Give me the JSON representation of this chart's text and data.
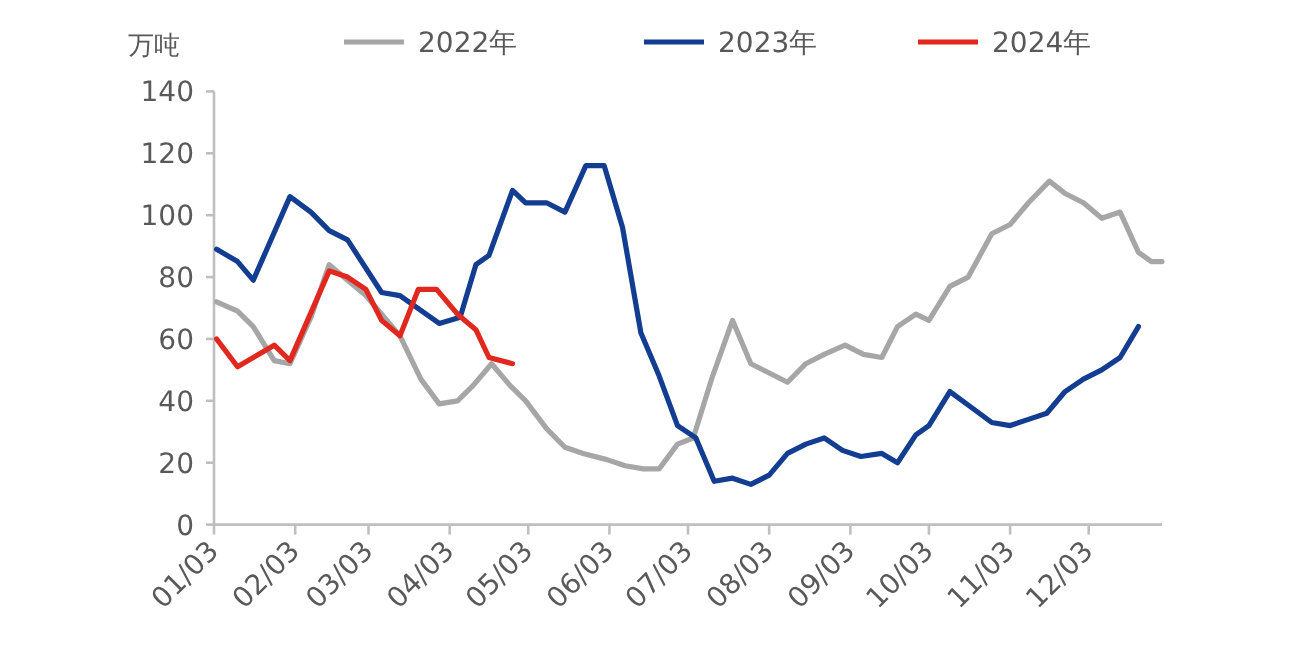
{
  "chart_data": {
    "type": "line",
    "ylabel": "万吨",
    "legend": "top",
    "grid": false,
    "marker": "none",
    "line_style": "solid",
    "xlim": [
      "--01-03",
      "--12-31"
    ],
    "xticks": [
      {
        "value": "--01-03",
        "label": "01/03"
      },
      {
        "value": "--02-03",
        "label": "02/03"
      },
      {
        "value": "--03-03",
        "label": "03/03"
      },
      {
        "value": "--04-03",
        "label": "04/03"
      },
      {
        "value": "--05-03",
        "label": "05/03"
      },
      {
        "value": "--06-03",
        "label": "06/03"
      },
      {
        "value": "--07-03",
        "label": "07/03"
      },
      {
        "value": "--08-03",
        "label": "08/03"
      },
      {
        "value": "--09-03",
        "label": "09/03"
      },
      {
        "value": "--10-03",
        "label": "10/03"
      },
      {
        "value": "--11-03",
        "label": "11/03"
      },
      {
        "value": "--12-03",
        "label": "12/03"
      }
    ],
    "ylim": [
      0,
      140
    ],
    "yticks": [
      0,
      20,
      40,
      60,
      80,
      100,
      120,
      140
    ],
    "series": [
      {
        "name": "2022年",
        "color": "#a6a6a6",
        "x": [
          "--01-04",
          "--01-12",
          "--01-18",
          "--01-26",
          "--02-01",
          "--02-09",
          "--02-16",
          "--02-23",
          "--03-02",
          "--03-09",
          "--03-15",
          "--03-23",
          "--03-30",
          "--04-06",
          "--04-12",
          "--04-19",
          "--04-26",
          "--05-02",
          "--05-10",
          "--05-17",
          "--05-24",
          "--06-02",
          "--06-09",
          "--06-16",
          "--06-22",
          "--06-29",
          "--07-05",
          "--07-12",
          "--07-20",
          "--07-27",
          "--08-03",
          "--08-10",
          "--08-17",
          "--08-24",
          "--09-01",
          "--09-08",
          "--09-15",
          "--09-21",
          "--09-28",
          "--10-03",
          "--10-11",
          "--10-18",
          "--10-27",
          "--11-03",
          "--11-10",
          "--11-18",
          "--11-24",
          "--12-01",
          "--12-08",
          "--12-15",
          "--12-22",
          "--12-27",
          "--12-31"
        ],
        "values": [
          72,
          69,
          64,
          53,
          52,
          67,
          84,
          79,
          74,
          67,
          61,
          47,
          39,
          40,
          45,
          52,
          45,
          40,
          31,
          25,
          23,
          21,
          19,
          18,
          18,
          26,
          28,
          47,
          66,
          52,
          49,
          46,
          52,
          55,
          58,
          55,
          54,
          64,
          68,
          66,
          77,
          80,
          94,
          97,
          104,
          111,
          107,
          104,
          99,
          101,
          88,
          85,
          85
        ]
      },
      {
        "name": "2023年",
        "color": "#133d91",
        "x": [
          "--01-04",
          "--01-12",
          "--01-18",
          "--02-01",
          "--02-09",
          "--02-16",
          "--02-23",
          "--03-08",
          "--03-15",
          "--03-30",
          "--04-07",
          "--04-13",
          "--04-18",
          "--04-27",
          "--05-02",
          "--05-10",
          "--05-17",
          "--05-25",
          "--06-01",
          "--06-08",
          "--06-15",
          "--06-22",
          "--06-29",
          "--07-06",
          "--07-13",
          "--07-20",
          "--07-27",
          "--08-03",
          "--08-10",
          "--08-17",
          "--08-24",
          "--08-31",
          "--09-07",
          "--09-15",
          "--09-21",
          "--09-28",
          "--10-03",
          "--10-11",
          "--10-19",
          "--10-27",
          "--11-03",
          "--11-10",
          "--11-17",
          "--11-24",
          "--12-01",
          "--12-08",
          "--12-15",
          "--12-22"
        ],
        "values": [
          89,
          85,
          79,
          106,
          101,
          95,
          92,
          75,
          74,
          65,
          67,
          84,
          87,
          108,
          104,
          104,
          101,
          116,
          116,
          96,
          62,
          48,
          32,
          28,
          14,
          15,
          13,
          16,
          23,
          26,
          28,
          24,
          22,
          23,
          20,
          29,
          32,
          43,
          38,
          33,
          32,
          34,
          36,
          43,
          47,
          50,
          54,
          64
        ]
      },
      {
        "name": "2024年",
        "color": "#e0281e",
        "x": [
          "--01-04",
          "--01-12",
          "--01-18",
          "--01-26",
          "--02-01",
          "--02-16",
          "--02-23",
          "--03-02",
          "--03-08",
          "--03-15",
          "--03-22",
          "--03-29",
          "--04-06",
          "--04-13",
          "--04-18",
          "--04-27"
        ],
        "values": [
          60,
          51,
          54,
          58,
          53,
          82,
          80,
          76,
          66,
          61,
          76,
          76,
          68,
          63,
          54,
          52
        ]
      }
    ]
  }
}
